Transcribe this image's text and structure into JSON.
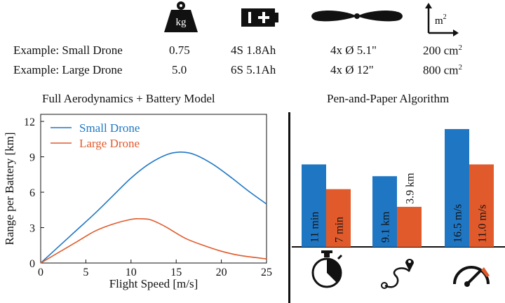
{
  "spec_table": {
    "header_icons": [
      "weight-icon",
      "battery-icon",
      "propeller-icon",
      "area-icon"
    ],
    "weight_unit": "kg",
    "area_unit": "m",
    "area_exponent": "2",
    "rows": [
      {
        "label": "Example: Small Drone",
        "mass": "0.75",
        "battery": "4S 1.8Ah",
        "props": "4x Ø 5.1\"",
        "area": "200 cm",
        "area_exp": "2"
      },
      {
        "label": "Example: Large Drone",
        "mass": "5.0",
        "battery": "6S 5.1Ah",
        "props": "4x Ø 12\"",
        "area": "800 cm",
        "area_exp": "2"
      }
    ]
  },
  "colors": {
    "small": "#1f77c4",
    "large": "#e05a2b",
    "axis": "#111111"
  },
  "chart_data": [
    {
      "type": "line",
      "title": "Full Aerodynamics + Battery Model",
      "xlabel": "Flight Speed [m/s]",
      "ylabel": "Range per Battery [km]",
      "xlim": [
        0,
        25
      ],
      "ylim": [
        0,
        12.6
      ],
      "xticks": [
        0,
        5,
        10,
        15,
        20,
        25
      ],
      "yticks": [
        0,
        3,
        6,
        9,
        12
      ],
      "grid": false,
      "legend": "top-left",
      "series": [
        {
          "name": "Small Drone",
          "color": "#1f77c4",
          "x": [
            0,
            2,
            4,
            6,
            8,
            10,
            12,
            14,
            15.5,
            17,
            19,
            21,
            23,
            25
          ],
          "y": [
            0,
            1.4,
            2.8,
            4.2,
            5.7,
            7.2,
            8.4,
            9.2,
            9.4,
            9.2,
            8.4,
            7.3,
            6.1,
            5.0
          ]
        },
        {
          "name": "Large Drone",
          "color": "#e05a2b",
          "x": [
            0,
            2,
            4,
            6,
            8,
            10,
            11,
            12,
            13,
            14,
            16,
            18,
            20,
            22,
            25
          ],
          "y": [
            0,
            0.9,
            1.8,
            2.7,
            3.3,
            3.7,
            3.75,
            3.7,
            3.4,
            3.0,
            2.1,
            1.5,
            1.0,
            0.65,
            0.35
          ]
        }
      ]
    },
    {
      "type": "bar",
      "title": "Pen-and-Paper Algorithm",
      "categories": [
        "stopwatch-icon",
        "route-icon",
        "speedometer-icon"
      ],
      "series": [
        {
          "name": "Small Drone",
          "color": "#1f77c4",
          "values": [
            11,
            9.1,
            16.5
          ],
          "labels": [
            "11 min",
            "9.1 km",
            "16.5 m/s"
          ]
        },
        {
          "name": "Large Drone",
          "color": "#e05a2b",
          "values": [
            7,
            3.9,
            11.0
          ],
          "labels": [
            "7 min",
            "3.9 km",
            "11.0 m/s"
          ]
        }
      ],
      "bar_heights_relative": [
        [
          0.7,
          0.49
        ],
        [
          0.6,
          0.34
        ],
        [
          1.0,
          0.7
        ]
      ]
    }
  ]
}
